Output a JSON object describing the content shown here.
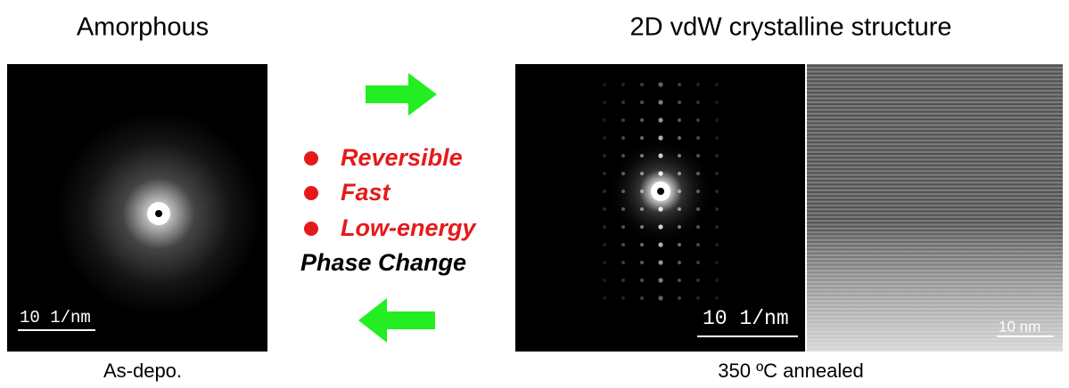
{
  "header": {
    "left_title": "Amorphous",
    "right_title": "2D vdW crystalline structure"
  },
  "panels": [
    {
      "scale_bar": "10 1/nm",
      "caption": "As-depo."
    },
    {
      "scale_bar": "10 1/nm"
    },
    {
      "scale_bar": "10 nm"
    }
  ],
  "right_caption": "350 ºC annealed",
  "center": {
    "bullets": [
      "Reversible",
      "Fast",
      "Low-energy"
    ],
    "label": "Phase Change"
  }
}
